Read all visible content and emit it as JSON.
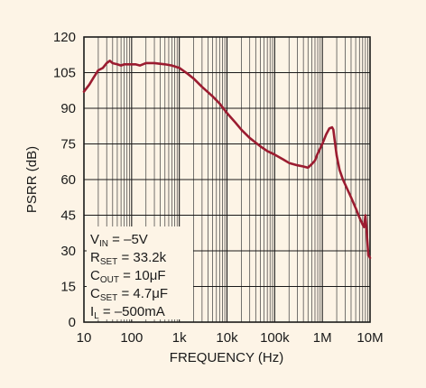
{
  "chart_data": {
    "type": "line",
    "xscale": "log",
    "xlim": [
      10,
      10000000
    ],
    "ylim": [
      0,
      120
    ],
    "xlabel": "FREQUENCY (Hz)",
    "ylabel": "PSRR (dB)",
    "x_tick_labels": [
      "10",
      "100",
      "1k",
      "10k",
      "100k",
      "1M",
      "10M"
    ],
    "x_tick_values": [
      10,
      100,
      1000,
      10000,
      100000,
      1000000,
      10000000
    ],
    "y_ticks": [
      0,
      15,
      30,
      45,
      60,
      75,
      90,
      105,
      120
    ],
    "grid": true,
    "line_color": "#9b1c30",
    "series": [
      {
        "x": [
          10,
          13,
          16,
          20,
          25,
          30,
          35,
          40,
          50,
          60,
          70,
          80,
          100,
          120,
          150,
          200,
          300,
          500,
          700,
          1000,
          1500,
          2000,
          3000,
          5000,
          7000,
          10000,
          15000,
          20000,
          30000,
          50000,
          70000,
          100000,
          150000,
          200000,
          300000,
          400000,
          500000,
          600000,
          700000,
          800000,
          1000000,
          1200000,
          1400000,
          1600000,
          1700000,
          1800000,
          2000000,
          2300000,
          2700000,
          3000000,
          4000000,
          5000000,
          6000000,
          7000000,
          7500000,
          8000000,
          8500000,
          9000000,
          9200000,
          9500000,
          10000000
        ],
        "y": [
          97,
          100,
          103,
          106,
          107,
          109,
          110,
          109,
          108.5,
          108,
          108.5,
          108.5,
          108.5,
          108.5,
          108,
          109,
          109,
          108.5,
          108,
          107,
          104.5,
          102.5,
          99,
          95,
          92,
          88,
          84,
          81,
          77.5,
          74,
          72,
          70.5,
          68.5,
          67,
          66,
          65.5,
          65,
          66.5,
          68,
          71,
          75,
          79,
          81.5,
          82,
          81,
          77,
          70,
          64,
          60,
          58,
          52.5,
          48,
          44,
          41,
          40,
          45,
          38,
          31,
          28,
          28,
          27
        ]
      }
    ]
  },
  "conditions": [
    {
      "main": "V",
      "sub": "IN",
      "rest": " = –5V"
    },
    {
      "main": "R",
      "sub": "SET",
      "rest": " = 33.2k"
    },
    {
      "main": "C",
      "sub": "OUT",
      "rest": " = 10μF"
    },
    {
      "main": "C",
      "sub": "SET",
      "rest": " = 4.7μF"
    },
    {
      "main": "I",
      "sub": "L",
      "rest": " = –500mA"
    }
  ]
}
